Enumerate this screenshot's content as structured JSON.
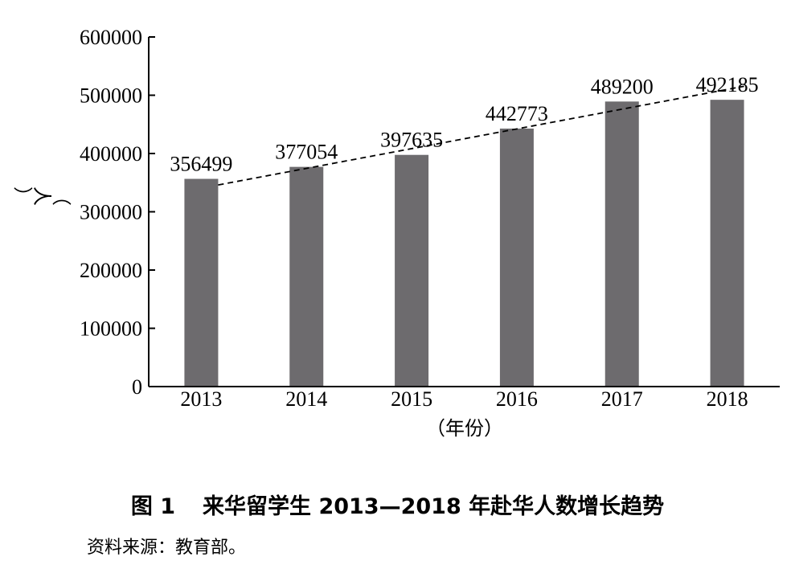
{
  "chart_data": {
    "type": "bar",
    "categories": [
      "2013",
      "2014",
      "2015",
      "2016",
      "2017",
      "2018"
    ],
    "values": [
      356499,
      377054,
      397635,
      442773,
      489200,
      492185
    ],
    "data_labels": [
      "356499",
      "377054",
      "397635",
      "442773",
      "489200",
      "492185"
    ],
    "ylim": [
      0,
      600000
    ],
    "yticks": [
      "0",
      "100000",
      "200000",
      "300000",
      "400000",
      "500000",
      "600000"
    ],
    "ylabel": "（人）",
    "xlabel": "（年份）",
    "trendline": "dashed",
    "bar_color": "#6d6b6e",
    "grid": false
  },
  "caption": {
    "number": "图 1",
    "title": "来华留学生 2013—2018 年赴华人数增长趋势"
  },
  "source": "资料来源：教育部。"
}
